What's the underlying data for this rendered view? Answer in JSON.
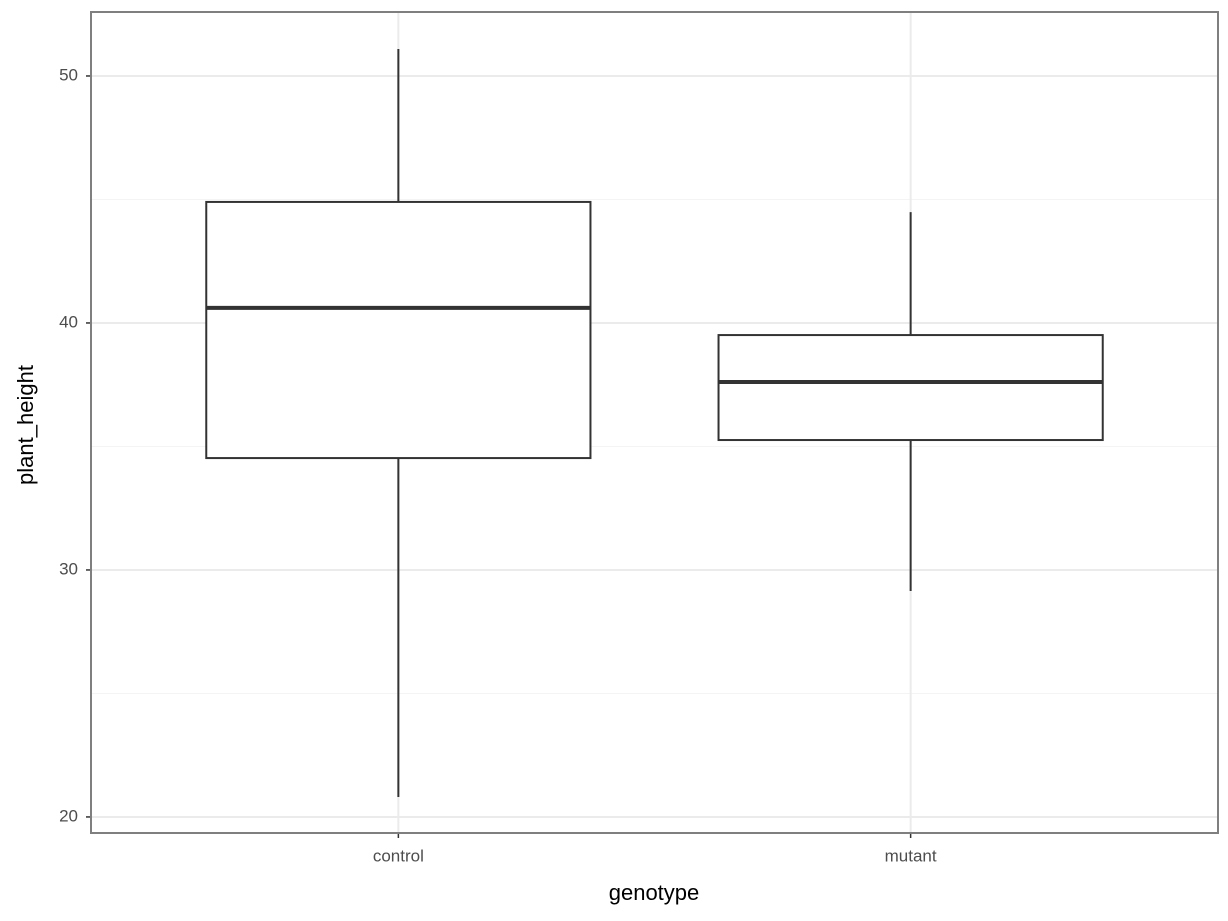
{
  "chart_data": {
    "type": "box",
    "x_label": "genotype",
    "y_label": "plant_height",
    "categories": [
      "control",
      "mutant"
    ],
    "boxes": [
      {
        "low": 20.81,
        "q1": 34.53,
        "median": 40.61,
        "q3": 44.9,
        "high": 51.09
      },
      {
        "low": 29.15,
        "q1": 35.26,
        "median": 37.61,
        "q3": 39.51,
        "high": 44.49
      }
    ],
    "color": "#333333",
    "fill": "#ffffff",
    "ylim": [
      19.35,
      52.59
    ],
    "yticks": [
      20,
      30,
      40,
      50
    ],
    "minor_yticks": [
      25,
      35,
      45
    ],
    "grid": true
  }
}
